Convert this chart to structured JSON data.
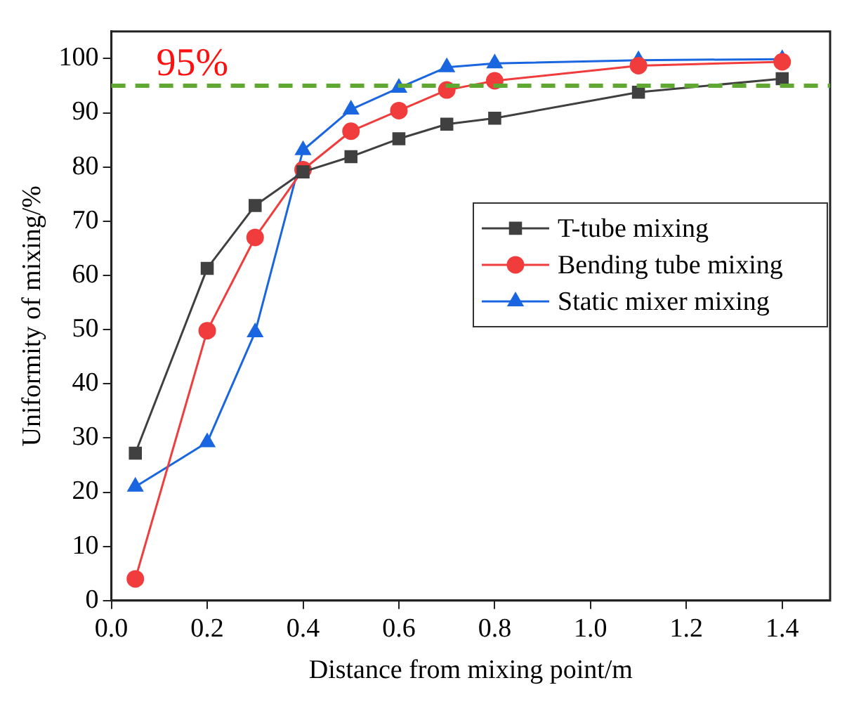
{
  "chart_data": {
    "type": "line",
    "xlabel": "Distance from mixing point/m",
    "ylabel": "Uniformity of mixing/%",
    "x": [
      0.05,
      0.2,
      0.3,
      0.4,
      0.5,
      0.6,
      0.7,
      0.8,
      1.1,
      1.4
    ],
    "series": [
      {
        "name": "T-tube mixing",
        "color": "#404040",
        "marker": "square",
        "values": [
          27.2,
          61.3,
          72.9,
          79.1,
          81.9,
          85.2,
          87.9,
          89.0,
          93.8,
          96.3
        ]
      },
      {
        "name": "Bending tube mixing",
        "color": "#f03c3c",
        "marker": "circle",
        "values": [
          4.0,
          49.8,
          67.0,
          79.5,
          86.6,
          90.4,
          94.2,
          95.9,
          98.7,
          99.4
        ]
      },
      {
        "name": "Static mixer mixing",
        "color": "#1a66e0",
        "marker": "triangle",
        "values": [
          21.0,
          29.2,
          49.5,
          83.1,
          90.6,
          94.6,
          98.4,
          99.1,
          99.7,
          99.9
        ]
      }
    ],
    "xlim": [
      0,
      1.5
    ],
    "xticks": [
      {
        "value": 0,
        "label": "0.0"
      },
      0.2,
      0.4,
      0.6,
      0.8,
      {
        "value": 1,
        "label": "1.0"
      },
      1.2,
      1.4
    ],
    "ylim": [
      0,
      105
    ],
    "yticks": [
      0,
      10,
      20,
      30,
      40,
      50,
      60,
      70,
      80,
      90,
      100
    ],
    "ref_lines": [
      {
        "axis": "y",
        "value": 95,
        "label": "95%",
        "color": "#5fa832",
        "line_style": "dashed"
      }
    ],
    "grid": false,
    "legend": "right"
  }
}
